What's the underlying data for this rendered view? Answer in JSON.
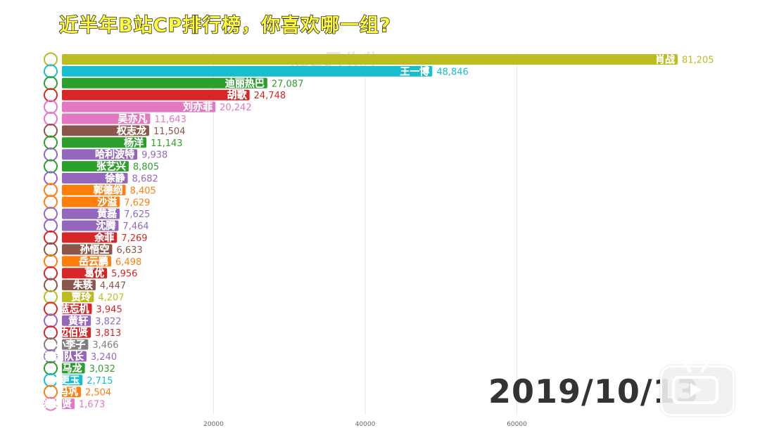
{
  "page": {
    "title": "近半年B站CP排行榜，你喜欢哪一组?",
    "watermark": "@Z君先生",
    "date": "2019/10/13"
  },
  "chart_data": {
    "type": "bar",
    "orientation": "horizontal",
    "categories": [
      "肖战",
      "王一博",
      "迪丽热巴",
      "胡歌",
      "刘亦菲",
      "吴亦凡",
      "权志龙",
      "杨洋",
      "哈利波特",
      "张艺兴",
      "徐静",
      "郭德纲",
      "沙溢",
      "黄磊",
      "沈腾",
      "余菲",
      "孙悟空",
      "岳云鹏",
      "葛优",
      "朱轶",
      "贾玲",
      "蓝忘机",
      "黄轩",
      "边伯贤",
      "小李子",
      "美国队长",
      "马龙",
      "林更玉",
      "冯巩",
      "洪世贤"
    ],
    "values": [
      81205,
      48846,
      27087,
      24748,
      20242,
      11643,
      11504,
      11143,
      9938,
      8805,
      8682,
      8405,
      7629,
      7625,
      7464,
      7269,
      6633,
      6498,
      5956,
      4447,
      4207,
      3945,
      3822,
      3813,
      3466,
      3240,
      3032,
      2715,
      2504,
      1673
    ],
    "value_labels": [
      "81,205",
      "48,846",
      "27,087",
      "24,748",
      "20,242",
      "11,643",
      "11,504",
      "11,143",
      "9,938",
      "8,805",
      "8,682",
      "8,405",
      "7,629",
      "7,625",
      "7,464",
      "7,269",
      "6,633",
      "6,498",
      "5,956",
      "4,447",
      "4,207",
      "3,945",
      "3,822",
      "3,813",
      "3,466",
      "3,240",
      "3,032",
      "2,715",
      "2,504",
      "1,673"
    ],
    "colors": [
      "#bcbd22",
      "#17becf",
      "#2ca02c",
      "#d62728",
      "#e377c2",
      "#e377c2",
      "#8c564b",
      "#2ca02c",
      "#9467bd",
      "#2ca02c",
      "#9467bd",
      "#ff7f0e",
      "#ff7f0e",
      "#9467bd",
      "#9467bd",
      "#d62728",
      "#8c564b",
      "#ff7f0e",
      "#d62728",
      "#8c564b",
      "#bcbd22",
      "#d62728",
      "#9467bd",
      "#d62728",
      "#7f7f7f",
      "#9467bd",
      "#2ca02c",
      "#17becf",
      "#ff7f0e",
      "#e377c2"
    ],
    "x_ticks": [
      20000,
      40000,
      60000
    ],
    "x_tick_labels": [
      "20000",
      "40000",
      "60000"
    ],
    "xlim": [
      0,
      81205
    ],
    "grid": true
  }
}
